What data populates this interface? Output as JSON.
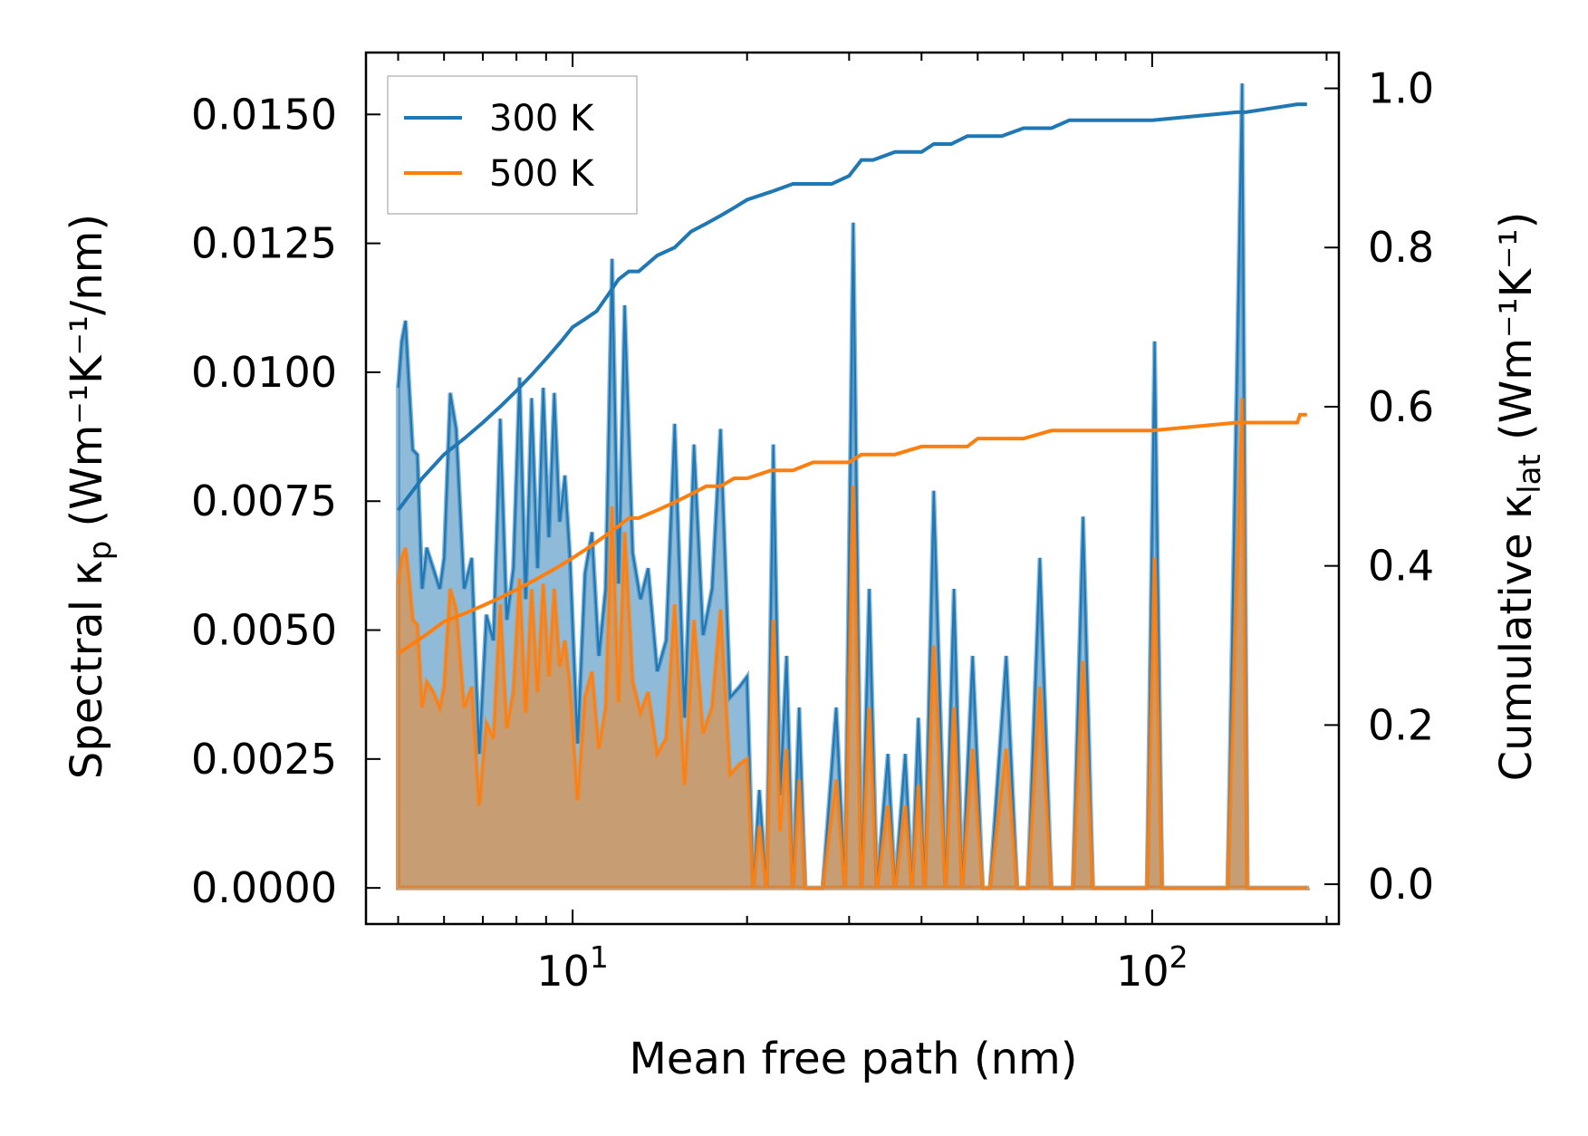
{
  "chart_data": {
    "type": "area",
    "xlabel": "Mean free path (nm)",
    "ylabel_left": {
      "text": "Spectral κ",
      "sub": "p",
      "units": " (Wm⁻¹K⁻¹/nm)"
    },
    "ylabel_right": {
      "text": "Cumulative κ",
      "sub": "lat",
      "units": " (Wm⁻¹K⁻¹)"
    },
    "x_scale": "log",
    "xlim": [
      4.4,
      210
    ],
    "ylim_left": [
      -0.0007,
      0.0162
    ],
    "ylim_right": [
      -0.05,
      1.045
    ],
    "x_tick_labels": [
      {
        "value": 10,
        "base": "10",
        "exp": "1"
      },
      {
        "value": 100,
        "base": "10",
        "exp": "2"
      }
    ],
    "y_left_ticks": [
      0.0,
      0.0025,
      0.005,
      0.0075,
      0.01,
      0.0125,
      0.015
    ],
    "y_left_tick_labels": [
      "0.0000",
      "0.0025",
      "0.0050",
      "0.0075",
      "0.0100",
      "0.0125",
      "0.0150"
    ],
    "y_right_ticks": [
      0.0,
      0.2,
      0.4,
      0.6,
      0.8,
      1.0
    ],
    "y_right_tick_labels": [
      "0.0",
      "0.2",
      "0.4",
      "0.6",
      "0.8",
      "1.0"
    ],
    "legend": {
      "position": "top-left",
      "entries": [
        "300 K",
        "500 K"
      ]
    },
    "series": [
      {
        "name": "300 K",
        "color": "#1f77b4",
        "spectral_x": [
          5.0,
          5.07,
          5.15,
          5.22,
          5.3,
          5.4,
          5.5,
          5.6,
          5.75,
          5.9,
          6.0,
          6.15,
          6.3,
          6.5,
          6.7,
          6.9,
          7.1,
          7.3,
          7.5,
          7.7,
          7.9,
          8.1,
          8.3,
          8.5,
          8.7,
          8.9,
          9.1,
          9.3,
          9.5,
          9.7,
          9.9,
          10.2,
          10.5,
          10.8,
          11.1,
          11.4,
          11.7,
          12.0,
          12.3,
          12.7,
          13.1,
          13.5,
          14.0,
          14.5,
          15.0,
          15.6,
          16.2,
          16.8,
          17.4,
          18.0,
          18.7,
          19.4,
          20.0,
          20.5,
          21.0,
          21.6,
          22.2,
          22.8,
          23.4,
          24.0,
          24.6,
          25.2,
          26.0,
          27.0,
          28.5,
          29.5,
          30.5,
          31.5,
          32.5,
          33.5,
          35.0,
          36.0,
          37.5,
          38.5,
          39.5,
          40.5,
          42.0,
          44.0,
          45.5,
          47.0,
          49.0,
          51.0,
          52.5,
          56.0,
          58.5,
          61.0,
          64.0,
          67.0,
          70.0,
          73.0,
          76.0,
          79.0,
          90.0,
          98.0,
          101.0,
          104.0,
          135.0,
          143.0,
          146.0,
          149.0,
          178.0,
          182.0,
          185.0
        ],
        "spectral_y": [
          0.0097,
          0.0106,
          0.011,
          0.0098,
          0.0085,
          0.0084,
          0.0058,
          0.0066,
          0.0062,
          0.0058,
          0.0064,
          0.0096,
          0.0089,
          0.0058,
          0.0064,
          0.0026,
          0.0053,
          0.0048,
          0.0091,
          0.0052,
          0.0062,
          0.0099,
          0.0056,
          0.0095,
          0.0062,
          0.0097,
          0.0068,
          0.0096,
          0.0071,
          0.008,
          0.0064,
          0.0028,
          0.0061,
          0.0069,
          0.0045,
          0.0058,
          0.0122,
          0.0059,
          0.0113,
          0.0065,
          0.0056,
          0.0062,
          0.0042,
          0.0048,
          0.009,
          0.0033,
          0.0086,
          0.0049,
          0.0058,
          0.0089,
          0.0037,
          0.0039,
          0.0041,
          0.0,
          0.0019,
          0.0,
          0.0086,
          0.0018,
          0.0045,
          0.0,
          0.0035,
          0.0,
          0.0,
          0.0,
          0.0035,
          0.0,
          0.0129,
          0.0,
          0.0058,
          0.0,
          0.0026,
          0.0,
          0.0026,
          0.0,
          0.0033,
          0.0,
          0.0077,
          0.0,
          0.0058,
          0.0,
          0.0045,
          0.0,
          0.0,
          0.0045,
          0.0,
          0.0,
          0.0064,
          0.0,
          0.0,
          0.0,
          0.0072,
          0.0,
          0.0,
          0.0,
          0.0106,
          0.0,
          0.0,
          0.0156,
          0.0,
          0.0,
          0.0,
          0.0,
          0.0
        ],
        "cumulative_x": [
          5.0,
          5.5,
          6.0,
          6.5,
          7.0,
          7.5,
          8.0,
          8.5,
          9.0,
          9.5,
          10.0,
          10.5,
          11.0,
          11.5,
          12.0,
          12.5,
          13.0,
          14.0,
          15.0,
          16.0,
          17.0,
          18.0,
          19.0,
          20.0,
          22.0,
          24.0,
          26.0,
          28.0,
          30.0,
          31.5,
          33.0,
          36.0,
          40.0,
          42.0,
          45.0,
          48.0,
          50.0,
          55.0,
          60.0,
          67.0,
          72.0,
          80.0,
          100.0,
          140.0,
          145.0,
          178.0,
          180.0,
          185.0
        ],
        "cumulative_y": [
          0.47,
          0.51,
          0.54,
          0.56,
          0.58,
          0.6,
          0.62,
          0.64,
          0.66,
          0.68,
          0.7,
          0.71,
          0.72,
          0.74,
          0.76,
          0.77,
          0.77,
          0.79,
          0.8,
          0.82,
          0.83,
          0.84,
          0.85,
          0.86,
          0.87,
          0.88,
          0.88,
          0.88,
          0.89,
          0.91,
          0.91,
          0.92,
          0.92,
          0.93,
          0.93,
          0.94,
          0.94,
          0.94,
          0.95,
          0.95,
          0.96,
          0.96,
          0.96,
          0.97,
          0.97,
          0.98,
          0.98,
          0.98
        ]
      },
      {
        "name": "500 K",
        "color": "#ff7f0e",
        "spectral_x": [
          5.0,
          5.07,
          5.15,
          5.22,
          5.3,
          5.4,
          5.5,
          5.6,
          5.75,
          5.9,
          6.0,
          6.15,
          6.3,
          6.5,
          6.7,
          6.9,
          7.1,
          7.3,
          7.5,
          7.7,
          7.9,
          8.1,
          8.3,
          8.5,
          8.7,
          8.9,
          9.1,
          9.3,
          9.5,
          9.7,
          9.9,
          10.2,
          10.5,
          10.8,
          11.1,
          11.4,
          11.7,
          12.0,
          12.3,
          12.7,
          13.1,
          13.5,
          14.0,
          14.5,
          15.0,
          15.6,
          16.2,
          16.8,
          17.4,
          18.0,
          18.7,
          19.4,
          20.0,
          20.5,
          21.0,
          21.6,
          22.2,
          22.8,
          23.4,
          24.0,
          24.6,
          25.2,
          26.0,
          27.0,
          28.5,
          29.5,
          30.5,
          31.5,
          32.5,
          33.5,
          35.0,
          36.0,
          37.5,
          38.5,
          39.5,
          40.5,
          42.0,
          44.0,
          45.5,
          47.0,
          49.0,
          51.0,
          52.5,
          56.0,
          58.5,
          61.0,
          64.0,
          67.0,
          70.0,
          73.0,
          76.0,
          79.0,
          90.0,
          98.0,
          101.0,
          104.0,
          135.0,
          143.0,
          146.0,
          149.0,
          178.0,
          182.0,
          185.0
        ],
        "spectral_y": [
          0.0059,
          0.0064,
          0.0066,
          0.006,
          0.0052,
          0.0051,
          0.0035,
          0.004,
          0.0038,
          0.0035,
          0.0039,
          0.0058,
          0.0054,
          0.0035,
          0.0039,
          0.0016,
          0.0032,
          0.0029,
          0.0055,
          0.0031,
          0.0038,
          0.006,
          0.0034,
          0.0058,
          0.0038,
          0.0059,
          0.0041,
          0.0058,
          0.0043,
          0.0048,
          0.0039,
          0.0017,
          0.0037,
          0.0042,
          0.0027,
          0.0035,
          0.0074,
          0.0036,
          0.0069,
          0.004,
          0.0034,
          0.0038,
          0.0026,
          0.0029,
          0.0055,
          0.002,
          0.0052,
          0.003,
          0.0035,
          0.0054,
          0.0022,
          0.0024,
          0.0025,
          0.0,
          0.0012,
          0.0,
          0.0052,
          0.0011,
          0.0027,
          0.0,
          0.0021,
          0.0,
          0.0,
          0.0,
          0.0021,
          0.0,
          0.0078,
          0.0,
          0.0035,
          0.0,
          0.0016,
          0.0,
          0.0016,
          0.0,
          0.002,
          0.0,
          0.0047,
          0.0,
          0.0035,
          0.0,
          0.0027,
          0.0,
          0.0,
          0.0027,
          0.0,
          0.0,
          0.0039,
          0.0,
          0.0,
          0.0,
          0.0044,
          0.0,
          0.0,
          0.0,
          0.0064,
          0.0,
          0.0,
          0.0095,
          0.0,
          0.0,
          0.0,
          0.0,
          0.0
        ],
        "cumulative_x": [
          5.0,
          5.5,
          6.0,
          6.5,
          7.0,
          7.5,
          8.0,
          8.5,
          9.0,
          9.5,
          10.0,
          10.5,
          11.0,
          11.5,
          12.0,
          12.5,
          13.0,
          14.0,
          15.0,
          16.0,
          17.0,
          18.0,
          19.0,
          20.0,
          22.0,
          24.0,
          26.0,
          28.0,
          30.0,
          31.5,
          33.0,
          36.0,
          40.0,
          42.0,
          45.0,
          48.0,
          50.0,
          55.0,
          60.0,
          67.0,
          72.0,
          80.0,
          100.0,
          140.0,
          145.0,
          178.0,
          180.0,
          185.0
        ],
        "cumulative_y": [
          0.29,
          0.31,
          0.33,
          0.34,
          0.35,
          0.36,
          0.37,
          0.38,
          0.39,
          0.4,
          0.41,
          0.42,
          0.43,
          0.44,
          0.45,
          0.46,
          0.46,
          0.47,
          0.48,
          0.49,
          0.5,
          0.5,
          0.51,
          0.51,
          0.52,
          0.52,
          0.53,
          0.53,
          0.53,
          0.54,
          0.54,
          0.54,
          0.55,
          0.55,
          0.55,
          0.55,
          0.56,
          0.56,
          0.56,
          0.57,
          0.57,
          0.57,
          0.57,
          0.58,
          0.58,
          0.58,
          0.59,
          0.59
        ]
      }
    ]
  }
}
